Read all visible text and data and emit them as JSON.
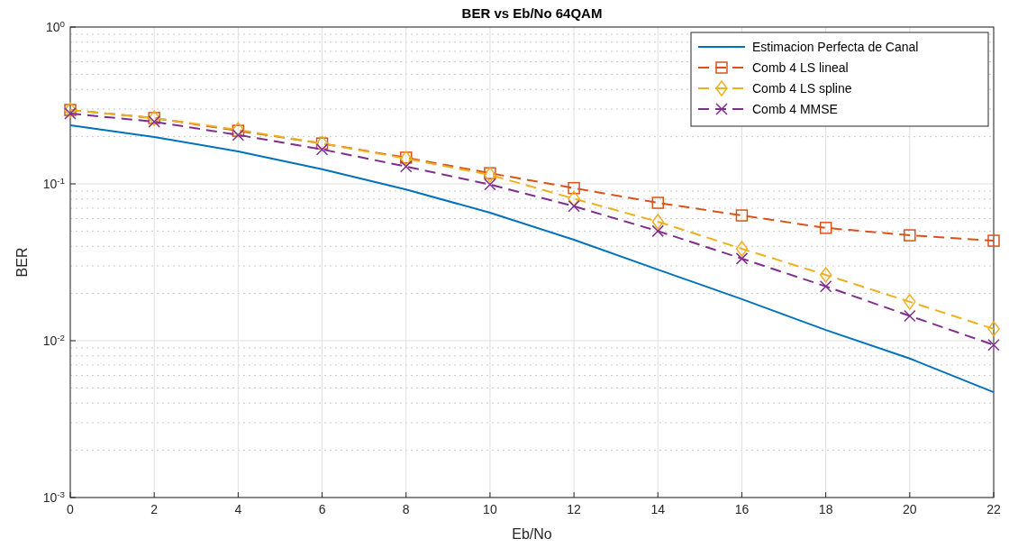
{
  "chart_data": {
    "type": "line",
    "title": "BER vs Eb/No 64QAM",
    "xlabel": "Eb/No",
    "ylabel": "BER",
    "x": [
      0,
      2,
      4,
      6,
      8,
      10,
      12,
      14,
      16,
      18,
      20,
      22
    ],
    "series": [
      {
        "name": "Estimacion Perfecta de Canal",
        "color": "#0072bd",
        "marker": "none",
        "line_style": "solid",
        "values": [
          0.236,
          0.199,
          0.161,
          0.124,
          0.092,
          0.0655,
          0.044,
          0.0284,
          0.0184,
          0.0117,
          0.0077,
          0.0047
        ]
      },
      {
        "name": "Comb 4 LS lineal",
        "color": "#d95319",
        "marker": "square",
        "line_style": "dashed",
        "values": [
          0.296,
          0.263,
          0.218,
          0.181,
          0.147,
          0.117,
          0.094,
          0.0757,
          0.0629,
          0.0524,
          0.047,
          0.0434
        ]
      },
      {
        "name": "Comb 4 LS spline",
        "color": "#edb120",
        "marker": "diamond",
        "line_style": "dashed",
        "values": [
          0.296,
          0.263,
          0.221,
          0.181,
          0.145,
          0.114,
          0.0805,
          0.0574,
          0.0386,
          0.0263,
          0.0177,
          0.0119
        ]
      },
      {
        "name": "Comb 4 MMSE",
        "color": "#7e2f8e",
        "marker": "cross",
        "line_style": "dashed",
        "values": [
          0.281,
          0.249,
          0.205,
          0.166,
          0.129,
          0.099,
          0.072,
          0.05,
          0.0334,
          0.0222,
          0.0144,
          0.0094
        ]
      }
    ],
    "xlim": [
      0,
      22
    ],
    "xticks": [
      0,
      2,
      4,
      6,
      8,
      10,
      12,
      14,
      16,
      18,
      20,
      22
    ],
    "ylim": [
      0.001,
      1
    ],
    "yticks": [
      {
        "value": 0.001,
        "label": "10$^{-3}$"
      },
      {
        "value": 0.01,
        "label": "10$^{-2}$"
      },
      {
        "value": 0.1,
        "label": "10$^{-1}$"
      },
      {
        "value": 1,
        "label": "10$^{0}$"
      }
    ],
    "log": "y",
    "grid": true,
    "legend": "top right"
  }
}
